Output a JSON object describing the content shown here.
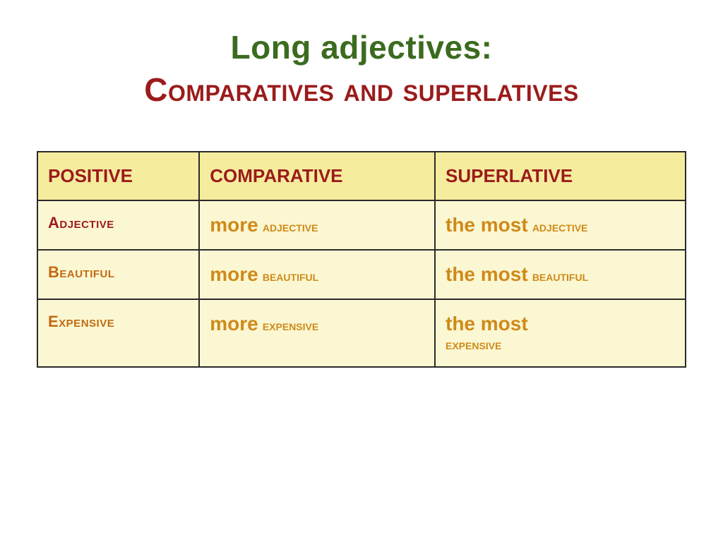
{
  "heading": {
    "line1": "Long adjectives:",
    "line2": "Comparatives and superlatives",
    "line1_color": "#3b6b1f",
    "line2_color": "#9b1b1b",
    "fontsize": 46
  },
  "table": {
    "columns": [
      "Positive",
      "Comparative",
      "Superlative"
    ],
    "header_bg": "#f5ec9e",
    "cell_bg": "#fbf7d2",
    "border_color": "#2b2b2b",
    "header_text_color": "#9b1b1b",
    "rows": [
      {
        "positive": "Adjective",
        "comparative_prefix": "more",
        "comparative_word": "adjective",
        "superlative_prefix": "the most",
        "superlative_word": "adjective",
        "word_color": "#9b1b1b"
      },
      {
        "positive": "Beautiful",
        "comparative_prefix": "more",
        "comparative_word": "beautiful",
        "superlative_prefix": "the most",
        "superlative_word": "beautiful",
        "word_color": "#c26a13"
      },
      {
        "positive": "Expensive",
        "comparative_prefix": "more",
        "comparative_word": "expensive",
        "superlative_prefix": "the most",
        "superlative_word": "expensive",
        "word_color": "#c26a13"
      }
    ],
    "prefix_color": "#cf8a1a",
    "prefix_fontsize": 28,
    "word_fontsize": 22
  }
}
